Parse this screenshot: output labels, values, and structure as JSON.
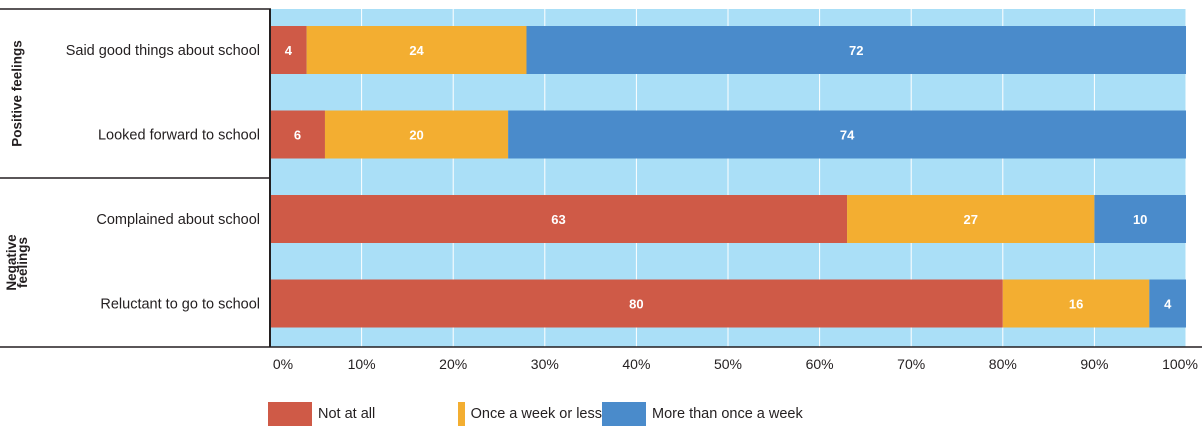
{
  "chart_data": {
    "type": "bar",
    "orientation": "horizontal",
    "stacked": true,
    "categories": [
      "Said good things about school",
      "Looked forward to school",
      "Complained about school",
      "Reluctant to go to school"
    ],
    "groups": [
      {
        "label": "Positive feelings",
        "categories": [
          0,
          1
        ]
      },
      {
        "label": "Negative\nfeelings",
        "categories": [
          2,
          3
        ]
      }
    ],
    "series": [
      {
        "name": "Not at all",
        "color": "#cf5a47",
        "values": [
          4,
          6,
          63,
          80
        ]
      },
      {
        "name": "Once a week or less",
        "color": "#f3ae31",
        "values": [
          24,
          20,
          27,
          16
        ]
      },
      {
        "name": "More than once a week",
        "color": "#4a8bcb",
        "values": [
          72,
          74,
          10,
          4
        ]
      }
    ],
    "xlim": [
      0,
      100
    ],
    "x_ticks": [
      "0%",
      "10%",
      "20%",
      "30%",
      "40%",
      "50%",
      "60%",
      "70%",
      "80%",
      "90%",
      "100%"
    ],
    "background_color": "#aadff7",
    "grid": true,
    "legend_position": "bottom"
  }
}
